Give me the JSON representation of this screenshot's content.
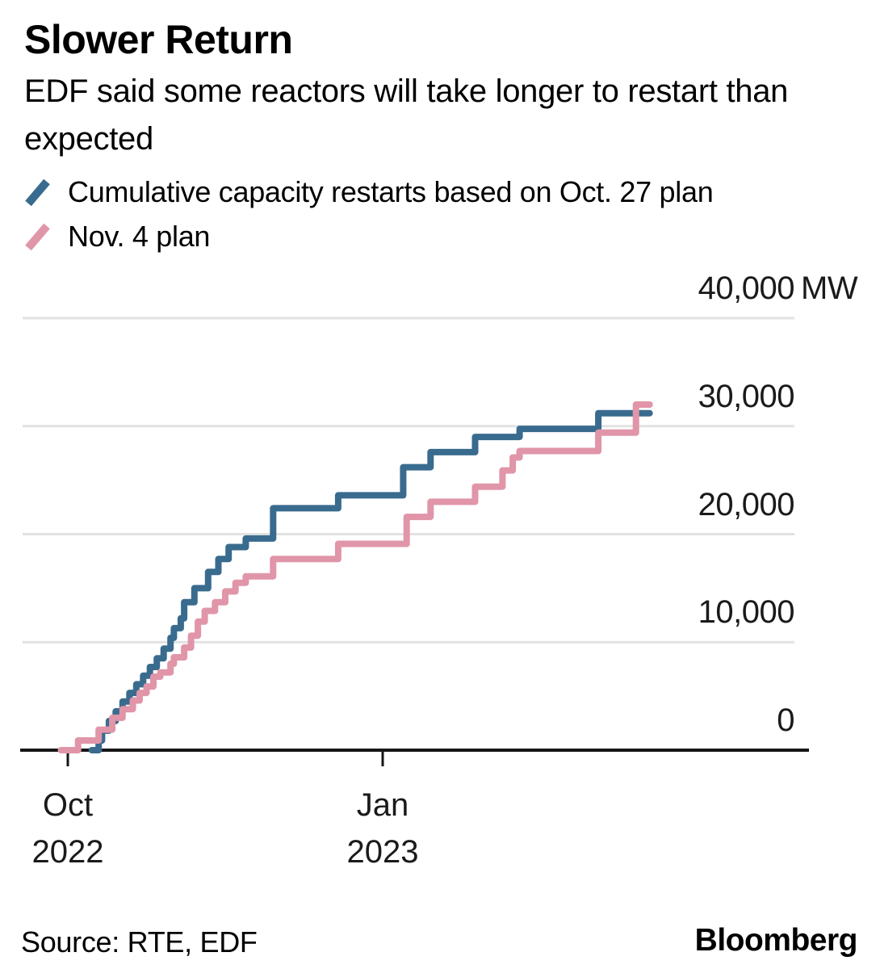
{
  "header": {
    "title": "Slower Return",
    "subtitle": "EDF said some reactors will take longer to restart than expected"
  },
  "legend": {
    "items": [
      {
        "label": "Cumulative capacity restarts based on Oct. 27 plan",
        "color": "#396B8E"
      },
      {
        "label": "Nov. 4 plan",
        "color": "#E195A9"
      }
    ]
  },
  "footer": {
    "source": "Source: RTE, EDF",
    "brand": "Bloomberg"
  },
  "chart_data": {
    "type": "line",
    "subtype": "step",
    "title": "Slower Return",
    "unit": "MW",
    "grid": "horizontal",
    "legend_position": "top-left",
    "colors": {
      "oct27_plan": "#396B8E",
      "nov4_plan": "#E195A9",
      "gridline": "#E2E2E2",
      "axis": "#161616"
    },
    "x_axis": {
      "range": [
        "2022-09-29",
        "2023-03-20"
      ],
      "ticks": [
        {
          "month": "Oct",
          "year": "2022",
          "date": "2022-10-01"
        },
        {
          "month": "Jan",
          "year": "2023",
          "date": "2023-01-01"
        }
      ]
    },
    "y_axis": {
      "range": [
        0,
        40000
      ],
      "ticks": [
        {
          "label": "0",
          "value": 0
        },
        {
          "label": "10,000",
          "value": 10000
        },
        {
          "label": "20,000",
          "value": 20000
        },
        {
          "label": "30,000",
          "value": 30000
        },
        {
          "label": "40,000",
          "value": 40000,
          "suffix": "MW"
        }
      ]
    },
    "series": [
      {
        "name": "Cumulative capacity restarts based on Oct. 27 plan",
        "color": "#396B8E",
        "points": [
          [
            "2022-10-08",
            0
          ],
          [
            "2022-10-10",
            900
          ],
          [
            "2022-10-11",
            1800
          ],
          [
            "2022-10-13",
            2700
          ],
          [
            "2022-10-15",
            3600
          ],
          [
            "2022-10-17",
            4500
          ],
          [
            "2022-10-19",
            5300
          ],
          [
            "2022-10-21",
            6100
          ],
          [
            "2022-10-23",
            6900
          ],
          [
            "2022-10-25",
            7700
          ],
          [
            "2022-10-27",
            8500
          ],
          [
            "2022-10-29",
            9400
          ],
          [
            "2022-10-31",
            10400
          ],
          [
            "2022-11-01",
            11300
          ],
          [
            "2022-11-03",
            12200
          ],
          [
            "2022-11-04",
            13700
          ],
          [
            "2022-11-07",
            15000
          ],
          [
            "2022-11-11",
            16500
          ],
          [
            "2022-11-14",
            17700
          ],
          [
            "2022-11-17",
            18800
          ],
          [
            "2022-11-22",
            19600
          ],
          [
            "2022-11-30",
            22400
          ],
          [
            "2022-12-19",
            23600
          ],
          [
            "2023-01-07",
            26200
          ],
          [
            "2023-01-15",
            27600
          ],
          [
            "2023-01-28",
            29000
          ],
          [
            "2023-02-10",
            29750
          ],
          [
            "2023-03-05",
            31200
          ]
        ]
      },
      {
        "name": "Nov. 4 plan",
        "color": "#E195A9",
        "points": [
          [
            "2022-09-29",
            0
          ],
          [
            "2022-10-04",
            900
          ],
          [
            "2022-10-10",
            1900
          ],
          [
            "2022-10-14",
            3000
          ],
          [
            "2022-10-17",
            3800
          ],
          [
            "2022-10-20",
            4600
          ],
          [
            "2022-10-22",
            5300
          ],
          [
            "2022-10-24",
            5900
          ],
          [
            "2022-10-26",
            6800
          ],
          [
            "2022-10-28",
            7200
          ],
          [
            "2022-10-31",
            8000
          ],
          [
            "2022-11-01",
            8600
          ],
          [
            "2022-11-04",
            9500
          ],
          [
            "2022-11-06",
            10600
          ],
          [
            "2022-11-08",
            11900
          ],
          [
            "2022-11-10",
            12900
          ],
          [
            "2022-11-13",
            13700
          ],
          [
            "2022-11-16",
            14700
          ],
          [
            "2022-11-19",
            15500
          ],
          [
            "2022-11-22",
            16100
          ],
          [
            "2022-11-30",
            17700
          ],
          [
            "2022-12-19",
            19100
          ],
          [
            "2023-01-08",
            21600
          ],
          [
            "2023-01-15",
            23000
          ],
          [
            "2023-01-28",
            24400
          ],
          [
            "2023-02-05",
            25900
          ],
          [
            "2023-02-08",
            27100
          ],
          [
            "2023-02-10",
            27700
          ],
          [
            "2023-03-05",
            29400
          ],
          [
            "2023-03-16",
            32000
          ]
        ]
      }
    ]
  }
}
